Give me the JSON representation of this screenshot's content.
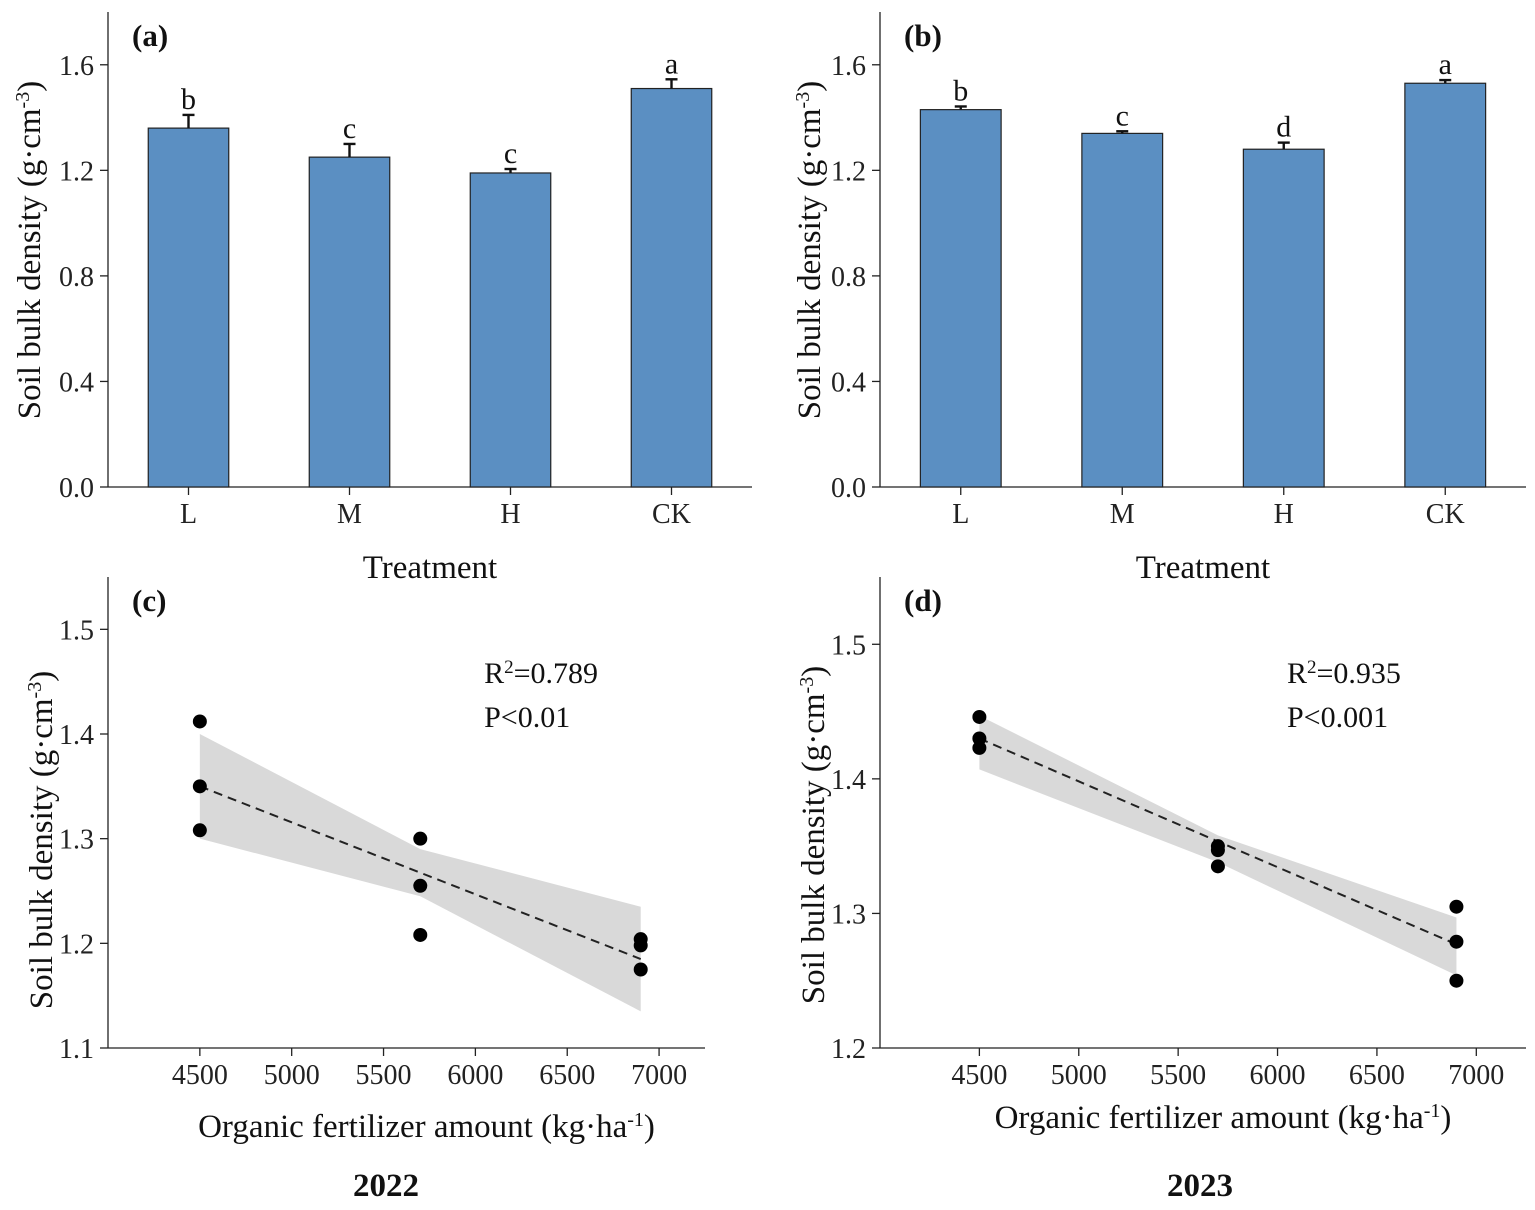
{
  "chart_data": [
    {
      "panel": "(a)",
      "type": "bar",
      "categories": [
        "L",
        "M",
        "H",
        "CK"
      ],
      "values": [
        1.36,
        1.25,
        1.19,
        1.51
      ],
      "errors": [
        0.05,
        0.05,
        0.015,
        0.035
      ],
      "letters": [
        "b",
        "c",
        "c",
        "a"
      ],
      "xlabel": "Treatment",
      "ylabel": "Soil bulk density (g·cm",
      "ylabel_sup": "-3",
      "ylim": [
        0,
        1.8
      ],
      "yticks": [
        "0.0",
        "0.4",
        "0.8",
        "1.2",
        "1.6"
      ],
      "bar_color": "#5b8fc2"
    },
    {
      "panel": "(b)",
      "type": "bar",
      "categories": [
        "L",
        "M",
        "H",
        "CK"
      ],
      "values": [
        1.43,
        1.34,
        1.28,
        1.53
      ],
      "errors": [
        0.012,
        0.008,
        0.025,
        0.012
      ],
      "letters": [
        "b",
        "c",
        "d",
        "a"
      ],
      "xlabel": "Treatment",
      "ylabel": "Soil bulk density (g·cm",
      "ylabel_sup": "-3",
      "ylim": [
        0,
        1.8
      ],
      "yticks": [
        "0.0",
        "0.4",
        "0.8",
        "1.2",
        "1.6"
      ],
      "bar_color": "#5b8fc2"
    },
    {
      "panel": "(c)",
      "type": "scatter",
      "x": [
        4500,
        4500,
        4500,
        5700,
        5700,
        5700,
        6900,
        6900,
        6900
      ],
      "y": [
        1.412,
        1.35,
        1.308,
        1.3,
        1.255,
        1.208,
        1.204,
        1.198,
        1.175
      ],
      "fit": {
        "x": [
          4500,
          6900
        ],
        "y": [
          1.35,
          1.185
        ]
      },
      "band": {
        "x": [
          4500,
          5700,
          6900
        ],
        "upper": [
          1.4,
          1.29,
          1.235
        ],
        "lower": [
          1.3,
          1.245,
          1.135
        ]
      },
      "stat_r": "R",
      "stat_r_sup": "2",
      "stat_r_val": "=0.789",
      "stat_p": "P<0.01",
      "xlabel": "Organic fertilizer amount (kg·ha",
      "xlabel_sup": "-1",
      "ylabel": "Soil bulk density (g·cm",
      "ylabel_sup": "-3",
      "xlim": [
        4000,
        7250
      ],
      "ylim": [
        1.1,
        1.55
      ],
      "xticks": [
        "4500",
        "5000",
        "5500",
        "6000",
        "6500",
        "7000"
      ],
      "yticks": [
        "1.1",
        "1.2",
        "1.3",
        "1.4",
        "1.5"
      ]
    },
    {
      "panel": "(d)",
      "type": "scatter",
      "x": [
        4500,
        4500,
        4500,
        5700,
        5700,
        5700,
        6900,
        6900,
        6900
      ],
      "y": [
        1.446,
        1.43,
        1.423,
        1.35,
        1.347,
        1.335,
        1.305,
        1.279,
        1.25
      ],
      "fit": {
        "x": [
          4500,
          6900
        ],
        "y": [
          1.43,
          1.277
        ]
      },
      "band": {
        "x": [
          4500,
          5700,
          6900
        ],
        "upper": [
          1.447,
          1.358,
          1.297
        ],
        "lower": [
          1.407,
          1.338,
          1.254
        ]
      },
      "stat_r": "R",
      "stat_r_sup": "2",
      "stat_r_val": "=0.935",
      "stat_p": "P<0.001",
      "xlabel": "Organic fertilizer amount (kg·ha",
      "xlabel_sup": "-1",
      "ylabel": "Soil bulk density (g·cm",
      "ylabel_sup": "-3",
      "xlim": [
        4000,
        7250
      ],
      "ylim": [
        1.2,
        1.55
      ],
      "xticks": [
        "4500",
        "5000",
        "5500",
        "6000",
        "6500",
        "7000"
      ],
      "yticks": [
        "1.2",
        "1.3",
        "1.4",
        "1.5"
      ]
    }
  ],
  "years": [
    "2022",
    "2023"
  ]
}
